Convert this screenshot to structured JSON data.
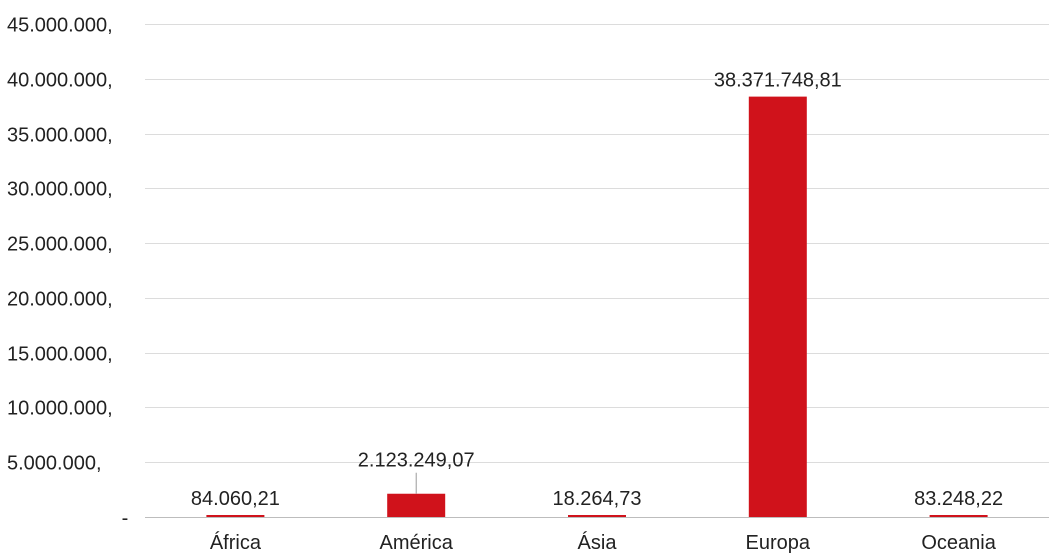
{
  "chart_data": {
    "type": "bar",
    "title": "",
    "xlabel": "",
    "ylabel": "",
    "categories": [
      "África",
      "América",
      "Ásia",
      "Europa",
      "Oceania"
    ],
    "values": [
      84060.21,
      2123249.07,
      18264.73,
      38371748.81,
      83248.22
    ],
    "data_labels": [
      "84.060,21",
      "2.123.249,07",
      "18.264,73",
      "38.371.748,81",
      "83.248,22"
    ],
    "ylim": [
      0,
      45000000
    ],
    "yticks": [
      0,
      5000000,
      10000000,
      15000000,
      20000000,
      25000000,
      30000000,
      35000000,
      40000000,
      45000000
    ],
    "ytick_labels": [
      "-",
      "5.000.000,",
      "10.000.000,",
      "15.000.000,",
      "20.000.000,",
      "25.000.000,",
      "30.000.000,",
      "35.000.000,",
      "40.000.000,",
      "45.000.000,"
    ],
    "grid": true,
    "legend": "none",
    "bar_color": "#d0121b"
  }
}
